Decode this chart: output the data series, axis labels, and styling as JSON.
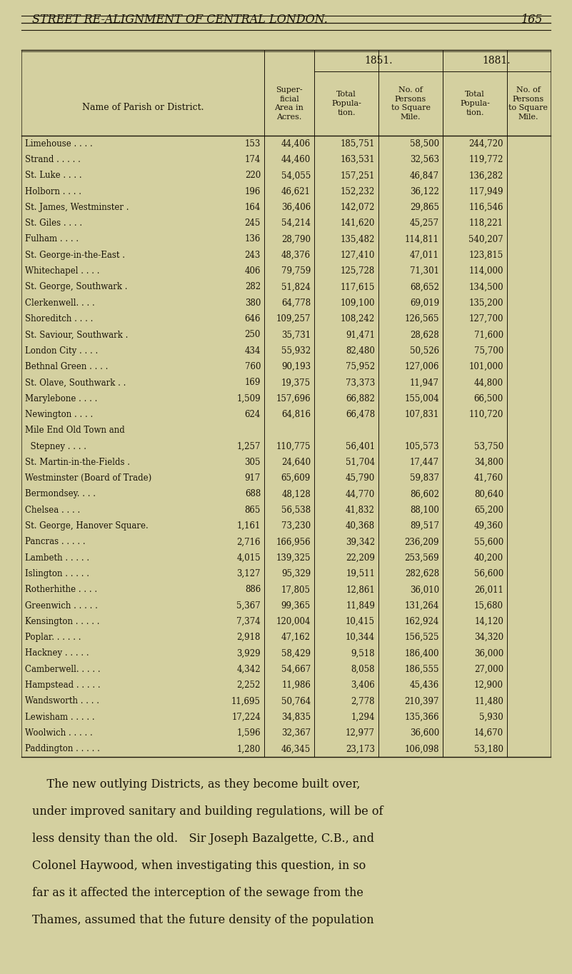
{
  "page_header": "STREET RE-ALIGNMENT OF CENTRAL LONDON.",
  "page_number": "165",
  "bg_color": "#d4d0a0",
  "text_color": "#1a1408",
  "rows": [
    [
      "Limehouse . . . .",
      "153",
      "44,406",
      "185,751",
      "58,500",
      "244,720"
    ],
    [
      "Strand . . . . .",
      "174",
      "44,460",
      "163,531",
      "32,563",
      "119,772"
    ],
    [
      "St. Luke . . . .",
      "220",
      "54,055",
      "157,251",
      "46,847",
      "136,282"
    ],
    [
      "Holborn . . . .",
      "196",
      "46,621",
      "152,232",
      "36,122",
      "117,949"
    ],
    [
      "St. James, Westminster .",
      "164",
      "36,406",
      "142,072",
      "29,865",
      "116,546"
    ],
    [
      "St. Giles . . . .",
      "245",
      "54,214",
      "141,620",
      "45,257",
      "118,221"
    ],
    [
      "Fulham . . . .",
      "136",
      "28,790",
      "135,482",
      "114,811",
      "540,207"
    ],
    [
      "St. George-in-the-East .",
      "243",
      "48,376",
      "127,410",
      "47,011",
      "123,815"
    ],
    [
      "Whitechapel . . . .",
      "406",
      "79,759",
      "125,728",
      "71,301",
      "114,000"
    ],
    [
      "St. George, Southwark .",
      "282",
      "51,824",
      "117,615",
      "68,652",
      "134,500"
    ],
    [
      "Clerkenwell. . . .",
      "380",
      "64,778",
      "109,100",
      "69,019",
      "135,200"
    ],
    [
      "Shoreditch . . . .",
      "646",
      "109,257",
      "108,242",
      "126,565",
      "127,700"
    ],
    [
      "St. Saviour, Southwark .",
      "250",
      "35,731",
      "91,471",
      "28,628",
      "71,600"
    ],
    [
      "London City . . . .",
      "434",
      "55,932",
      "82,480",
      "50,526",
      "75,700"
    ],
    [
      "Bethnal Green . . . .",
      "760",
      "90,193",
      "75,952",
      "127,006",
      "101,000"
    ],
    [
      "St. Olave, Southwark . .",
      "169",
      "19,375",
      "73,373",
      "11,947",
      "44,800"
    ],
    [
      "Marylebone . . . .",
      "1,509",
      "157,696",
      "66,882",
      "155,004",
      "66,500"
    ],
    [
      "Newington . . . .",
      "624",
      "64,816",
      "66,478",
      "107,831",
      "110,720"
    ],
    [
      "Mile End Old Town and",
      "",
      "",
      "",
      "",
      ""
    ],
    [
      "  Stepney . . . .",
      "1,257",
      "110,775",
      "56,401",
      "105,573",
      "53,750"
    ],
    [
      "St. Martin-in-the-Fields .",
      "305",
      "24,640",
      "51,704",
      "17,447",
      "34,800"
    ],
    [
      "Westminster (Board of Trade)",
      "917",
      "65,609",
      "45,790",
      "59,837",
      "41,760"
    ],
    [
      "Bermondsey. . . .",
      "688",
      "48,128",
      "44,770",
      "86,602",
      "80,640"
    ],
    [
      "Chelsea . . . .",
      "865",
      "56,538",
      "41,832",
      "88,100",
      "65,200"
    ],
    [
      "St. George, Hanover Square.",
      "1,161",
      "73,230",
      "40,368",
      "89,517",
      "49,360"
    ],
    [
      "Pancras . . . . .",
      "2,716",
      "166,956",
      "39,342",
      "236,209",
      "55,600"
    ],
    [
      "Lambeth . . . . .",
      "4,015",
      "139,325",
      "22,209",
      "253,569",
      "40,200"
    ],
    [
      "Islington . . . . .",
      "3,127",
      "95,329",
      "19,511",
      "282,628",
      "56,600"
    ],
    [
      "Rotherhithe . . . .",
      "886",
      "17,805",
      "12,861",
      "36,010",
      "26,011"
    ],
    [
      "Greenwich . . . . .",
      "5,367",
      "99,365",
      "11,849",
      "131,264",
      "15,680"
    ],
    [
      "Kensington . . . . .",
      "7,374",
      "120,004",
      "10,415",
      "162,924",
      "14,120"
    ],
    [
      "Poplar. . . . . .",
      "2,918",
      "47,162",
      "10,344",
      "156,525",
      "34,320"
    ],
    [
      "Hackney . . . . .",
      "3,929",
      "58,429",
      "9,518",
      "186,400",
      "36,000"
    ],
    [
      "Camberwell. . . . .",
      "4,342",
      "54,667",
      "8,058",
      "186,555",
      "27,000"
    ],
    [
      "Hampstead . . . . .",
      "2,252",
      "11,986",
      "3,406",
      "45,436",
      "12,900"
    ],
    [
      "Wandsworth . . . .",
      "11,695",
      "50,764",
      "2,778",
      "210,397",
      "11,480"
    ],
    [
      "Lewisham . . . . .",
      "17,224",
      "34,835",
      "1,294",
      "135,366",
      "5,930"
    ],
    [
      "Woolwich . . . . .",
      "1,596",
      "32,367",
      "12,977",
      "36,600",
      "14,670"
    ],
    [
      "Paddington . . . . .",
      "1,280",
      "46,345",
      "23,173",
      "106,098",
      "53,180"
    ]
  ],
  "footer_lines": [
    "    The new outlying Districts, as they become built over,",
    "under improved sanitary and building regulations, will be of",
    "less density than the old.   Sir Joseph Bazalgette, C.B., and",
    "Colonel Haywood, when investigating this question, in so",
    "far as it affected the interception of the sewage from the",
    "Thames, assumed that the future density of the population"
  ]
}
